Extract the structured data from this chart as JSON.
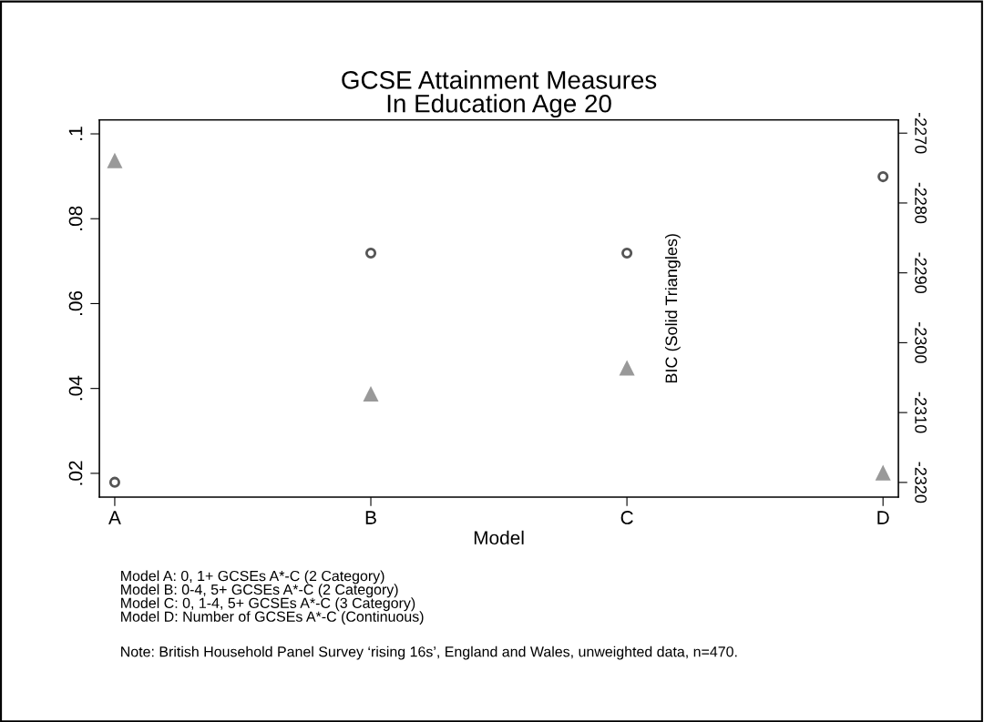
{
  "chart_data": {
    "type": "scatter",
    "title": "GCSE Attainment Measures\nIn Education Age 20",
    "xlabel": "Model",
    "y2label": "BIC (Solid Triangles)",
    "categories": [
      "A",
      "B",
      "C",
      "D"
    ],
    "series": [
      {
        "color": "#555555",
        "marker": "circle",
        "values": [
          0.0179,
          0.0719,
          0.0719,
          0.0899
        ]
      },
      {
        "color": "#999999",
        "marker": "triangle",
        "axis": "y2",
        "values": [
          -2273.9,
          -2307.3,
          -2303.6,
          -2318.6
        ]
      }
    ],
    "ylim": [
      0.0144,
      0.1033
    ],
    "yticks": [
      {
        "value": 0.02,
        "label": ".02"
      },
      {
        "value": 0.04,
        "label": ".04"
      },
      {
        "value": 0.06,
        "label": ".06"
      },
      {
        "value": 0.08,
        "label": ".08"
      },
      {
        "value": 0.1,
        "label": ".1"
      }
    ],
    "y2lim": [
      -2322.1,
      -2268.1
    ],
    "y2ticks": [
      -2320,
      -2310,
      -2300,
      -2290,
      -2280,
      -2270
    ],
    "grid": false,
    "legend": false,
    "annotations": [
      "Model A: 0, 1+ GCSEs A*-C (2 Category)\nModel B: 0-4, 5+ GCSEs A*-C (2 Category)\nModel C: 0, 1-4, 5+ GCSEs A*-C (3 Category)\nModel D: Number of GCSEs A*-C (Continuous)",
      "Note: British Household Panel Survey ‘rising 16s’, England and Wales, unweighted data, n=470."
    ]
  }
}
